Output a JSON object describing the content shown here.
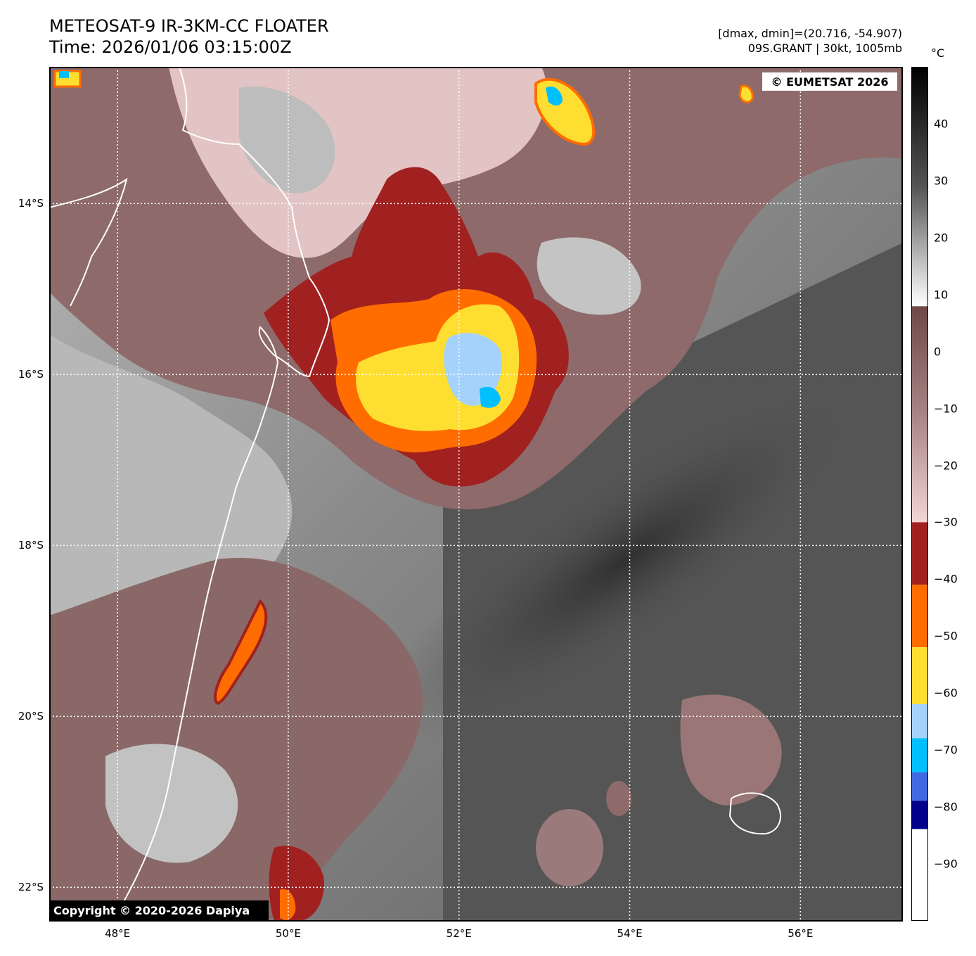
{
  "header": {
    "title": "METEOSAT-9 IR-3KM-CC FLOATER",
    "time": "Time: 2026/01/06 03:15:00Z",
    "range_info": "[dmax, dmin]=(20.716, -54.907)",
    "storm_info": "09S.GRANT | 30kt, 1005mb"
  },
  "map": {
    "credit_top": "© EUMETSAT 2026",
    "credit_bottom": "Copyright © 2020-2026 Dapiya",
    "lon_range": [
      47.2,
      57.2
    ],
    "lat_range": [
      -12.4,
      -22.4
    ],
    "lat_labels": [
      "14°S",
      "16°S",
      "18°S",
      "20°S",
      "22°S"
    ],
    "lat_values": [
      -14,
      -16,
      -18,
      -20,
      -22
    ],
    "lon_labels": [
      "48°E",
      "50°E",
      "52°E",
      "54°E",
      "56°E"
    ],
    "lon_values": [
      48,
      50,
      52,
      54,
      56
    ]
  },
  "colorbar": {
    "unit": "°C",
    "labels": [
      "40",
      "30",
      "20",
      "10",
      "0",
      "−10",
      "−20",
      "−30",
      "−40",
      "−50",
      "−60",
      "−70",
      "−80",
      "−90"
    ],
    "values": [
      40,
      30,
      20,
      10,
      0,
      -10,
      -20,
      -30,
      -40,
      -50,
      -60,
      -70,
      -80,
      -90
    ],
    "range": [
      -100,
      50
    ]
  },
  "colors": {
    "very_cold": "#ffffff",
    "navy": "#00008b",
    "royal_blue": "#4169e1",
    "cyan": "#00bfff",
    "light_blue": "#a5d2fb",
    "yellow": "#fede30",
    "orange": "#ff6c00",
    "dark_red": "#a12020",
    "pink": "#f2d5d5",
    "brown": "#6e4848",
    "white": "#ffffff",
    "black": "#000000"
  }
}
